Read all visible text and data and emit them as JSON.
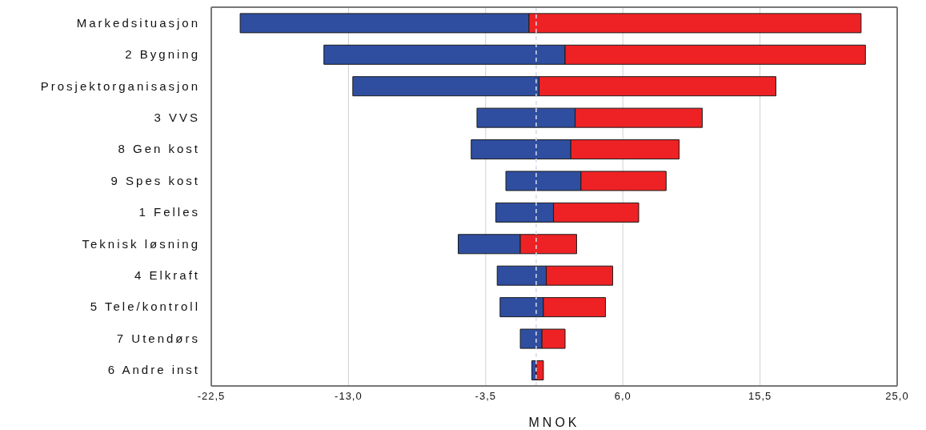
{
  "chart_data": {
    "type": "bar",
    "orientation": "horizontal",
    "xlabel": "MNOK",
    "categories": [
      "Markedsituasjon",
      "2 Bygning",
      "Prosjektorganisasjon",
      "3 VVS",
      "8 Gen kost",
      "9 Spes kost",
      "1 Felles",
      "Teknisk løsning",
      "4 Elkraft",
      "5 Tele/kontroll",
      "7 Utendørs",
      "6 Andre inst"
    ],
    "series": [
      {
        "color": "#2f4ea0",
        "base": [
          -20.5,
          -14.7,
          -12.7,
          -4.1,
          -4.5,
          -2.1,
          -2.8,
          -5.4,
          -2.7,
          -2.5,
          -1.1,
          -0.3
        ],
        "values": [
          20.0,
          16.7,
          12.9,
          6.8,
          6.9,
          5.2,
          4.0,
          4.3,
          3.4,
          3.0,
          1.5,
          0.3
        ]
      },
      {
        "color": "#ee2224",
        "base": [
          -0.5,
          2.0,
          0.2,
          2.7,
          2.4,
          3.1,
          1.2,
          -1.1,
          0.7,
          0.5,
          0.4,
          0.0
        ],
        "values": [
          23.0,
          20.8,
          16.4,
          8.8,
          7.5,
          5.9,
          5.9,
          3.9,
          4.6,
          4.3,
          1.6,
          0.5
        ]
      }
    ],
    "xlim": [
      -22.5,
      25.0
    ],
    "xticks": [
      {
        "value": -22.5,
        "label": "-22,5"
      },
      {
        "value": -13.0,
        "label": "-13,0"
      },
      {
        "value": -3.5,
        "label": "-3,5"
      },
      {
        "value": 6.0,
        "label": "6,0"
      },
      {
        "value": 15.5,
        "label": "15,5"
      },
      {
        "value": 25.0,
        "label": "25,0"
      }
    ],
    "ref_lines": [
      {
        "axis": "x",
        "value": 0,
        "color": "#d6dcea",
        "line_style": "dashed"
      }
    ],
    "grid": "x"
  }
}
